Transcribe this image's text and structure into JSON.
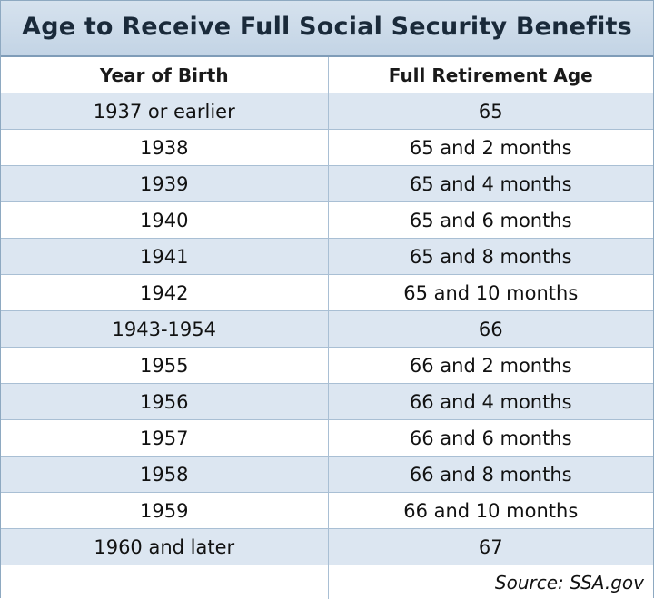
{
  "title": "Age to Receive Full Social Security Benefits",
  "headers": {
    "year": "Year of Birth",
    "age": "Full Retirement Age"
  },
  "rows": [
    {
      "year": "1937 or earlier",
      "age": "65"
    },
    {
      "year": "1938",
      "age": "65 and 2 months"
    },
    {
      "year": "1939",
      "age": "65 and 4 months"
    },
    {
      "year": "1940",
      "age": "65 and 6 months"
    },
    {
      "year": "1941",
      "age": "65 and 8 months"
    },
    {
      "year": "1942",
      "age": "65 and 10 months"
    },
    {
      "year": "1943-1954",
      "age": "66"
    },
    {
      "year": "1955",
      "age": "66 and 2 months"
    },
    {
      "year": "1956",
      "age": "66 and 4 months"
    },
    {
      "year": "1957",
      "age": "66 and 6 months"
    },
    {
      "year": "1958",
      "age": "66 and 8 months"
    },
    {
      "year": "1959",
      "age": "66 and 10 months"
    },
    {
      "year": "1960 and later",
      "age": "67"
    }
  ],
  "source": "Source: SSA.gov",
  "colors": {
    "title_bg": "#c3d4e5",
    "stripe": "#dce6f1",
    "grid": "#a9bfd4"
  }
}
